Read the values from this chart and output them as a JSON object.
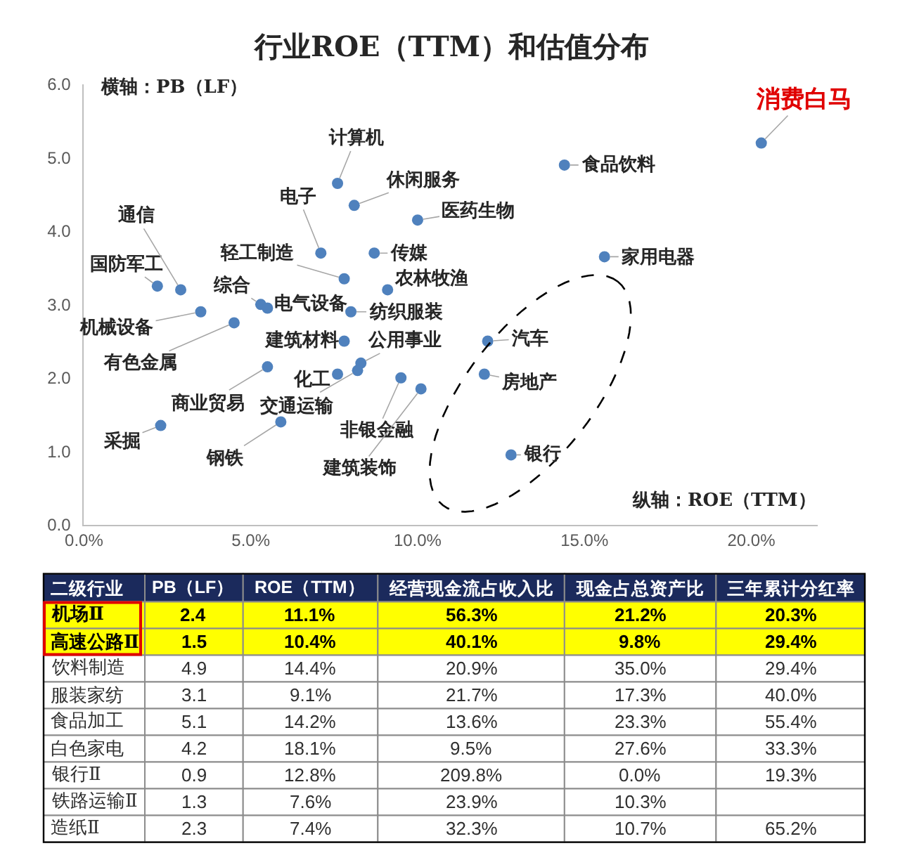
{
  "chart_data": [
    {
      "type": "scatter",
      "title": "行业ROE（TTM）和估值分布",
      "xlabel": "纵轴：ROE（TTM）",
      "ylabel": "横轴：PB（LF）",
      "xlim": [
        0,
        22
      ],
      "xticks": [
        {
          "value": 0,
          "label": "0.0%"
        },
        {
          "value": 5,
          "label": "5.0%"
        },
        {
          "value": 10,
          "label": "10.0%"
        },
        {
          "value": 15,
          "label": "15.0%"
        },
        {
          "value": 20,
          "label": "20.0%"
        }
      ],
      "ylim": [
        0,
        6
      ],
      "yticks": [
        {
          "value": 0,
          "label": "0.0"
        },
        {
          "value": 1,
          "label": "1.0"
        },
        {
          "value": 2,
          "label": "2.0"
        },
        {
          "value": 3,
          "label": "3.0"
        },
        {
          "value": 4,
          "label": "4.0"
        },
        {
          "value": 5,
          "label": "5.0"
        },
        {
          "value": 6,
          "label": "6.0"
        }
      ],
      "marker": "circle",
      "series": [
        {
          "color": "#4f81bd",
          "x": [
            7.6,
            8.1,
            10.0,
            7.1,
            8.7,
            7.8,
            9.1,
            2.2,
            2.9,
            5.3,
            5.5,
            8.0,
            3.5,
            4.5,
            7.8,
            8.3,
            8.2,
            5.5,
            7.6,
            9.5,
            10.1,
            2.3,
            5.9,
            14.4,
            15.6,
            12.1,
            12.0,
            12.8
          ],
          "values": [
            4.65,
            4.35,
            4.15,
            3.7,
            3.7,
            3.35,
            3.2,
            3.25,
            3.2,
            3.0,
            2.95,
            2.9,
            2.9,
            2.75,
            2.5,
            2.2,
            2.1,
            2.15,
            2.05,
            2.0,
            1.85,
            1.35,
            1.4,
            4.9,
            3.65,
            2.5,
            2.05,
            0.95
          ]
        },
        {
          "name": "消费白马",
          "color": "#4f81bd",
          "x": [
            20.3
          ],
          "values": [
            5.2
          ]
        }
      ],
      "annotations": [
        {
          "text": "计算机",
          "x": 7.6,
          "y": 4.65
        },
        {
          "text": "休闲服务",
          "x": 8.1,
          "y": 4.35
        },
        {
          "text": "医药生物",
          "x": 10.0,
          "y": 4.15
        },
        {
          "text": "电子",
          "x": 7.1,
          "y": 3.7
        },
        {
          "text": "传媒",
          "x": 8.7,
          "y": 3.7
        },
        {
          "text": "轻工制造",
          "x": 7.8,
          "y": 3.35
        },
        {
          "text": "农林牧渔",
          "x": 9.1,
          "y": 3.2
        },
        {
          "text": "国防军工",
          "x": 2.2,
          "y": 3.25
        },
        {
          "text": "通信",
          "x": 2.9,
          "y": 3.2
        },
        {
          "text": "综合",
          "x": 5.3,
          "y": 3.0
        },
        {
          "text": "电气设备",
          "x": 5.5,
          "y": 2.95
        },
        {
          "text": "纺织服装",
          "x": 8.0,
          "y": 2.9
        },
        {
          "text": "机械设备",
          "x": 3.5,
          "y": 2.9
        },
        {
          "text": "有色金属",
          "x": 4.5,
          "y": 2.75
        },
        {
          "text": "建筑材料",
          "x": 7.8,
          "y": 2.5
        },
        {
          "text": "公用事业",
          "x": 8.3,
          "y": 2.2
        },
        {
          "text": "交通运输",
          "x": 8.2,
          "y": 2.1
        },
        {
          "text": "商业贸易",
          "x": 5.5,
          "y": 2.15
        },
        {
          "text": "化工",
          "x": 7.6,
          "y": 2.05
        },
        {
          "text": "非银金融",
          "x": 9.5,
          "y": 2.0
        },
        {
          "text": "建筑装饰",
          "x": 10.1,
          "y": 1.85
        },
        {
          "text": "采掘",
          "x": 2.3,
          "y": 1.35
        },
        {
          "text": "钢铁",
          "x": 5.9,
          "y": 1.4
        },
        {
          "text": "食品饮料",
          "x": 14.4,
          "y": 4.9
        },
        {
          "text": "家用电器",
          "x": 15.6,
          "y": 3.65
        },
        {
          "text": "汽车",
          "x": 12.1,
          "y": 2.5
        },
        {
          "text": "房地产",
          "x": 12.0,
          "y": 2.05
        },
        {
          "text": "银行",
          "x": 12.8,
          "y": 0.95
        }
      ]
    },
    {
      "type": "heatmap",
      "ylabel": "二级行业",
      "categories": [
        "PB（LF）",
        "ROE（TTM）",
        "经营现金流占收入比",
        "现金占总资产比",
        "三年累计分红率"
      ],
      "y_categories": [
        "机场Ⅱ",
        "高速公路Ⅱ",
        "饮料制造",
        "服装家纺",
        "食品加工",
        "白色家电",
        "银行Ⅱ",
        "铁路运输Ⅱ",
        "造纸Ⅱ"
      ],
      "cells": [
        [
          2.4,
          11.1,
          56.3,
          21.2,
          20.3
        ],
        [
          1.5,
          10.4,
          40.1,
          9.8,
          29.4
        ],
        [
          4.9,
          14.4,
          20.9,
          35.0,
          29.4
        ],
        [
          3.1,
          9.1,
          21.7,
          17.3,
          40.0
        ],
        [
          5.1,
          14.2,
          13.6,
          23.3,
          55.4
        ],
        [
          4.2,
          18.1,
          9.5,
          27.6,
          33.3
        ],
        [
          0.9,
          12.8,
          209.8,
          0.0,
          19.3
        ],
        [
          1.3,
          7.6,
          23.9,
          10.3,
          null
        ],
        [
          2.3,
          7.4,
          32.3,
          10.7,
          65.2
        ]
      ],
      "cell_labels": [
        [
          "2.4",
          "11.1%",
          "56.3%",
          "21.2%",
          "20.3%"
        ],
        [
          "1.5",
          "10.4%",
          "40.1%",
          "9.8%",
          "29.4%"
        ],
        [
          "4.9",
          "14.4%",
          "20.9%",
          "35.0%",
          "29.4%"
        ],
        [
          "3.1",
          "9.1%",
          "21.7%",
          "17.3%",
          "40.0%"
        ],
        [
          "5.1",
          "14.2%",
          "13.6%",
          "23.3%",
          "55.4%"
        ],
        [
          "4.2",
          "18.1%",
          "9.5%",
          "27.6%",
          "33.3%"
        ],
        [
          "0.9",
          "12.8%",
          "209.8%",
          "0.0%",
          "19.3%"
        ],
        [
          "1.3",
          "7.6%",
          "23.9%",
          "10.3%",
          null
        ],
        [
          "2.3",
          "7.4%",
          "32.3%",
          "10.7%",
          "65.2%"
        ]
      ],
      "bands": [
        {
          "axis": "y",
          "from": "机场Ⅱ",
          "to": "高速公路Ⅱ",
          "color": "#ffff00"
        }
      ]
    }
  ]
}
